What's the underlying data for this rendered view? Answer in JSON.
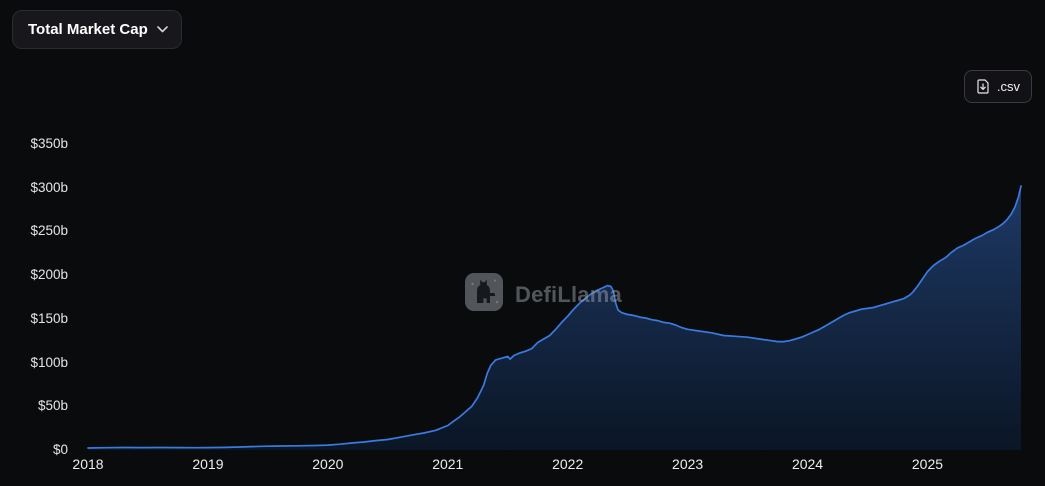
{
  "header": {
    "metric_selector": {
      "label": "Total Market Cap",
      "icon": "chevron-down-icon"
    },
    "csv_button": {
      "label": ".csv",
      "icon": "download-csv-icon"
    }
  },
  "watermark": {
    "text": "DefiLlama",
    "icon": "defillama-llama-icon"
  },
  "chart_data": {
    "type": "area",
    "title": "Total Market Cap",
    "unit": "USD billions",
    "grid": false,
    "legend_position": "none",
    "line_color": "#3a7be0",
    "fill_top_color": "#1f3c6b",
    "fill_bottom_color": "#0b1728",
    "xlim": [
      2018,
      2025.78
    ],
    "ylim": [
      0,
      350
    ],
    "y_ticks": [
      {
        "label": "$350b",
        "value": 350
      },
      {
        "label": "$300b",
        "value": 300
      },
      {
        "label": "$250b",
        "value": 250
      },
      {
        "label": "$200b",
        "value": 200
      },
      {
        "label": "$150b",
        "value": 150
      },
      {
        "label": "$100b",
        "value": 100
      },
      {
        "label": "$50b",
        "value": 50
      },
      {
        "label": "$0",
        "value": 0
      }
    ],
    "x_ticks": [
      {
        "label": "2018",
        "value": 2018
      },
      {
        "label": "2019",
        "value": 2019
      },
      {
        "label": "2020",
        "value": 2020
      },
      {
        "label": "2021",
        "value": 2021
      },
      {
        "label": "2022",
        "value": 2022
      },
      {
        "label": "2023",
        "value": 2023
      },
      {
        "label": "2024",
        "value": 2024
      },
      {
        "label": "2025",
        "value": 2025
      }
    ],
    "points": [
      [
        2018.0,
        2.3
      ],
      [
        2018.15,
        2.6
      ],
      [
        2018.3,
        2.9
      ],
      [
        2018.45,
        2.8
      ],
      [
        2018.6,
        2.9
      ],
      [
        2018.75,
        2.8
      ],
      [
        2018.9,
        2.6
      ],
      [
        2019.0,
        2.7
      ],
      [
        2019.15,
        3.0
      ],
      [
        2019.3,
        3.6
      ],
      [
        2019.45,
        4.2
      ],
      [
        2019.6,
        4.6
      ],
      [
        2019.75,
        4.8
      ],
      [
        2019.9,
        5.1
      ],
      [
        2020.0,
        5.6
      ],
      [
        2020.1,
        6.6
      ],
      [
        2020.2,
        8.0
      ],
      [
        2020.3,
        9.2
      ],
      [
        2020.4,
        10.8
      ],
      [
        2020.5,
        12.0
      ],
      [
        2020.6,
        14.5
      ],
      [
        2020.7,
        17.0
      ],
      [
        2020.8,
        19.5
      ],
      [
        2020.9,
        22.5
      ],
      [
        2021.0,
        28
      ],
      [
        2021.05,
        33
      ],
      [
        2021.1,
        38
      ],
      [
        2021.15,
        44
      ],
      [
        2021.2,
        50
      ],
      [
        2021.25,
        60
      ],
      [
        2021.3,
        74
      ],
      [
        2021.33,
        88
      ],
      [
        2021.36,
        97
      ],
      [
        2021.4,
        103
      ],
      [
        2021.45,
        105
      ],
      [
        2021.5,
        107
      ],
      [
        2021.52,
        104
      ],
      [
        2021.55,
        108
      ],
      [
        2021.6,
        111
      ],
      [
        2021.65,
        113
      ],
      [
        2021.7,
        116
      ],
      [
        2021.75,
        123
      ],
      [
        2021.8,
        127
      ],
      [
        2021.85,
        131
      ],
      [
        2021.9,
        138
      ],
      [
        2021.95,
        146
      ],
      [
        2022.0,
        153
      ],
      [
        2022.05,
        161
      ],
      [
        2022.1,
        168
      ],
      [
        2022.15,
        174
      ],
      [
        2022.2,
        179
      ],
      [
        2022.25,
        183
      ],
      [
        2022.3,
        186
      ],
      [
        2022.33,
        188
      ],
      [
        2022.36,
        187
      ],
      [
        2022.38,
        182
      ],
      [
        2022.4,
        168
      ],
      [
        2022.42,
        160
      ],
      [
        2022.45,
        157
      ],
      [
        2022.5,
        155
      ],
      [
        2022.55,
        154
      ],
      [
        2022.6,
        152
      ],
      [
        2022.65,
        151
      ],
      [
        2022.7,
        149
      ],
      [
        2022.75,
        148
      ],
      [
        2022.8,
        146
      ],
      [
        2022.85,
        145
      ],
      [
        2022.9,
        143
      ],
      [
        2022.95,
        140
      ],
      [
        2023.0,
        138
      ],
      [
        2023.1,
        136
      ],
      [
        2023.2,
        134
      ],
      [
        2023.3,
        131
      ],
      [
        2023.4,
        130
      ],
      [
        2023.5,
        129
      ],
      [
        2023.6,
        127
      ],
      [
        2023.7,
        125
      ],
      [
        2023.75,
        124
      ],
      [
        2023.8,
        124
      ],
      [
        2023.85,
        125
      ],
      [
        2023.9,
        127
      ],
      [
        2023.95,
        129
      ],
      [
        2024.0,
        132
      ],
      [
        2024.05,
        135
      ],
      [
        2024.1,
        138
      ],
      [
        2024.15,
        142
      ],
      [
        2024.2,
        146
      ],
      [
        2024.25,
        150
      ],
      [
        2024.3,
        154
      ],
      [
        2024.35,
        157
      ],
      [
        2024.4,
        159
      ],
      [
        2024.45,
        161
      ],
      [
        2024.5,
        162
      ],
      [
        2024.55,
        163
      ],
      [
        2024.6,
        165
      ],
      [
        2024.65,
        167
      ],
      [
        2024.7,
        169
      ],
      [
        2024.75,
        171
      ],
      [
        2024.8,
        173
      ],
      [
        2024.85,
        177
      ],
      [
        2024.88,
        181
      ],
      [
        2024.92,
        188
      ],
      [
        2024.96,
        196
      ],
      [
        2025.0,
        204
      ],
      [
        2025.05,
        211
      ],
      [
        2025.1,
        216
      ],
      [
        2025.15,
        220
      ],
      [
        2025.2,
        226
      ],
      [
        2025.25,
        231
      ],
      [
        2025.3,
        234
      ],
      [
        2025.35,
        238
      ],
      [
        2025.4,
        242
      ],
      [
        2025.45,
        245
      ],
      [
        2025.5,
        249
      ],
      [
        2025.55,
        252
      ],
      [
        2025.6,
        256
      ],
      [
        2025.63,
        259
      ],
      [
        2025.66,
        263
      ],
      [
        2025.7,
        270
      ],
      [
        2025.73,
        278
      ],
      [
        2025.76,
        290
      ],
      [
        2025.78,
        302
      ]
    ]
  }
}
